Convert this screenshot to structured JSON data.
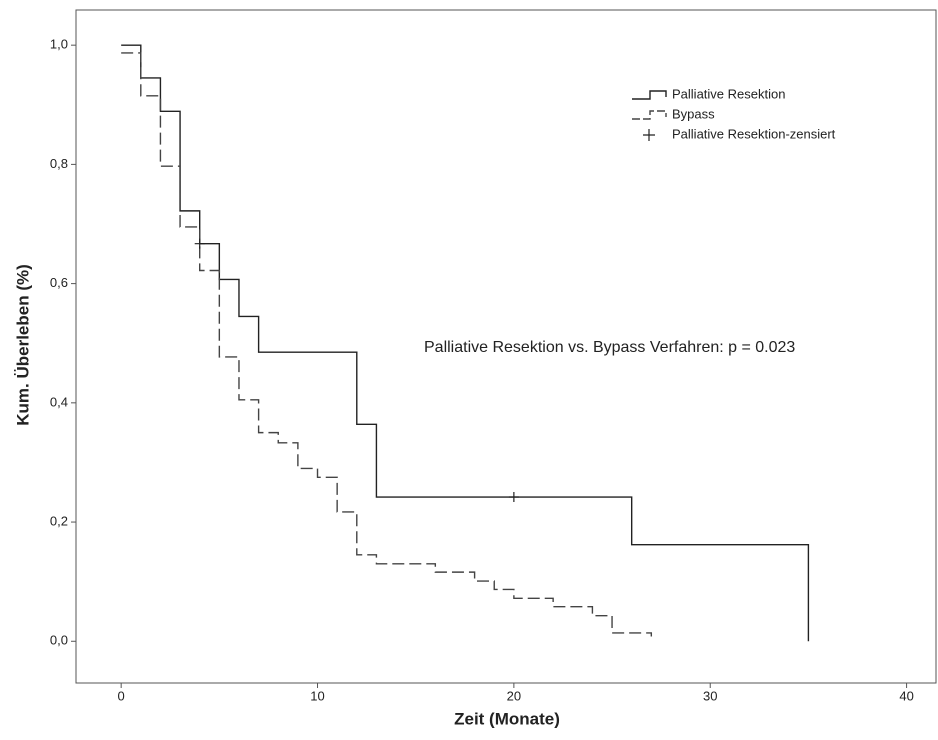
{
  "chart_data": {
    "type": "step",
    "x_label": "Zeit (Monate)",
    "y_label": "Kum. Überleben (%)",
    "annotation": "Palliative Resektion vs. Bypass Verfahren: p = 0.023",
    "xlim": [
      -2.3,
      41.6
    ],
    "ylim": [
      -0.07,
      1.059
    ],
    "xticks": [
      0,
      10,
      20,
      30,
      40
    ],
    "yticks": [
      {
        "value": 0,
        "label": "0,0"
      },
      {
        "value": 0.2,
        "label": "0,2"
      },
      {
        "value": 0.4,
        "label": "0,4"
      },
      {
        "value": 0.6,
        "label": "0,6"
      },
      {
        "value": 0.8,
        "label": "0,8"
      },
      {
        "value": 1,
        "label": "1,0"
      }
    ],
    "legend": "upper right",
    "series": [
      {
        "name": "Palliative Resektion",
        "color": "#222222",
        "dashed": false,
        "x": [
          0,
          1,
          2,
          3,
          4,
          5,
          6,
          7,
          12,
          13,
          26,
          35
        ],
        "values": [
          1,
          0.945,
          0.889,
          0.722,
          0.667,
          0.607,
          0.545,
          0.485,
          0.364,
          0.242,
          0.162,
          0
        ]
      },
      {
        "name": "Bypass",
        "color": "#444444",
        "dashed": true,
        "x": [
          0,
          1,
          2,
          3,
          4,
          5,
          6,
          7,
          8,
          9,
          10,
          11,
          12,
          13,
          16,
          18,
          19,
          20,
          22,
          24,
          25,
          27
        ],
        "values": [
          0.987,
          0.915,
          0.797,
          0.695,
          0.622,
          0.477,
          0.405,
          0.35,
          0.333,
          0.29,
          0.275,
          0.217,
          0.145,
          0.13,
          0.116,
          0.101,
          0.087,
          0.072,
          0.058,
          0.043,
          0.014,
          0.008
        ]
      }
    ],
    "censored": {
      "name": "Palliative Resektion-zensiert",
      "color": "#222222",
      "x": [
        4,
        20
      ],
      "values": [
        0.667,
        0.242
      ]
    }
  }
}
